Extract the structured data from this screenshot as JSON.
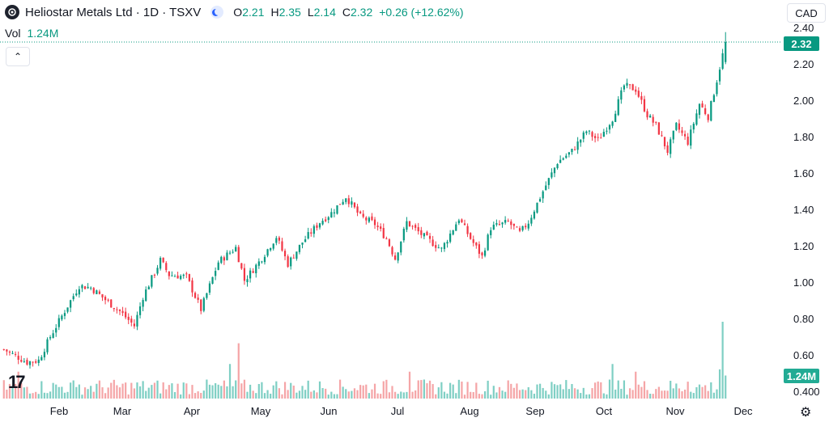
{
  "header": {
    "title": "Heliostar Metals Ltd · 1D · TSXV",
    "ohlc": [
      {
        "k": "O",
        "v": "2.21"
      },
      {
        "k": "H",
        "v": "2.35"
      },
      {
        "k": "L",
        "v": "2.14"
      },
      {
        "k": "C",
        "v": "2.32"
      }
    ],
    "change": "+0.26 (+12.62%)"
  },
  "volume": {
    "label": "Vol",
    "value": "1.24M"
  },
  "currency": "CAD",
  "collapse_glyph": "⌃",
  "logo_text": "17",
  "settings_glyph": "⚙",
  "price_label": "2.32",
  "vol_label": "1.24M",
  "colors": {
    "up": "#089981",
    "down": "#f23645",
    "up_vol": "#7fcfc4",
    "down_vol": "#f5a5a7",
    "grid_dot": "#089981"
  },
  "chart_data": {
    "type": "candlestick",
    "y_axis": {
      "ticks": [
        "2.40",
        "2.20",
        "2.00",
        "1.80",
        "1.60",
        "1.40",
        "1.20",
        "1.00",
        "0.80",
        "0.60",
        "0.400"
      ],
      "ylim": [
        0.4,
        2.4
      ],
      "position": "right"
    },
    "x_axis": {
      "ticks": [
        "Feb",
        "Mar",
        "Apr",
        "May",
        "Jun",
        "Jul",
        "Aug",
        "Sep",
        "Oct",
        "Nov",
        "Dec"
      ]
    },
    "anchors": [
      [
        0,
        0.63
      ],
      [
        8,
        0.56
      ],
      [
        12,
        0.57
      ],
      [
        16,
        0.7
      ],
      [
        22,
        0.87
      ],
      [
        26,
        0.98
      ],
      [
        30,
        0.97
      ],
      [
        36,
        0.89
      ],
      [
        40,
        0.84
      ],
      [
        45,
        0.76
      ],
      [
        48,
        0.92
      ],
      [
        54,
        1.12
      ],
      [
        57,
        1.04
      ],
      [
        63,
        1.03
      ],
      [
        68,
        0.85
      ],
      [
        74,
        1.11
      ],
      [
        80,
        1.19
      ],
      [
        83,
        1.01
      ],
      [
        88,
        1.11
      ],
      [
        94,
        1.25
      ],
      [
        98,
        1.1
      ],
      [
        103,
        1.22
      ],
      [
        109,
        1.33
      ],
      [
        113,
        1.38
      ],
      [
        118,
        1.47
      ],
      [
        123,
        1.36
      ],
      [
        128,
        1.32
      ],
      [
        132,
        1.24
      ],
      [
        135,
        1.13
      ],
      [
        139,
        1.33
      ],
      [
        145,
        1.25
      ],
      [
        151,
        1.18
      ],
      [
        157,
        1.35
      ],
      [
        161,
        1.24
      ],
      [
        165,
        1.14
      ],
      [
        168,
        1.3
      ],
      [
        174,
        1.33
      ],
      [
        178,
        1.27
      ],
      [
        181,
        1.33
      ],
      [
        186,
        1.5
      ],
      [
        191,
        1.66
      ],
      [
        196,
        1.72
      ],
      [
        201,
        1.83
      ],
      [
        205,
        1.78
      ],
      [
        210,
        1.9
      ],
      [
        214,
        2.08
      ],
      [
        218,
        2.06
      ],
      [
        222,
        1.92
      ],
      [
        225,
        1.86
      ],
      [
        229,
        1.72
      ],
      [
        232,
        1.86
      ],
      [
        236,
        1.77
      ],
      [
        240,
        1.98
      ],
      [
        243,
        1.91
      ],
      [
        246,
        2.11
      ],
      [
        249,
        2.32
      ]
    ],
    "candle_count": 250,
    "volume_max": "1.24M",
    "last_close": 2.32
  }
}
